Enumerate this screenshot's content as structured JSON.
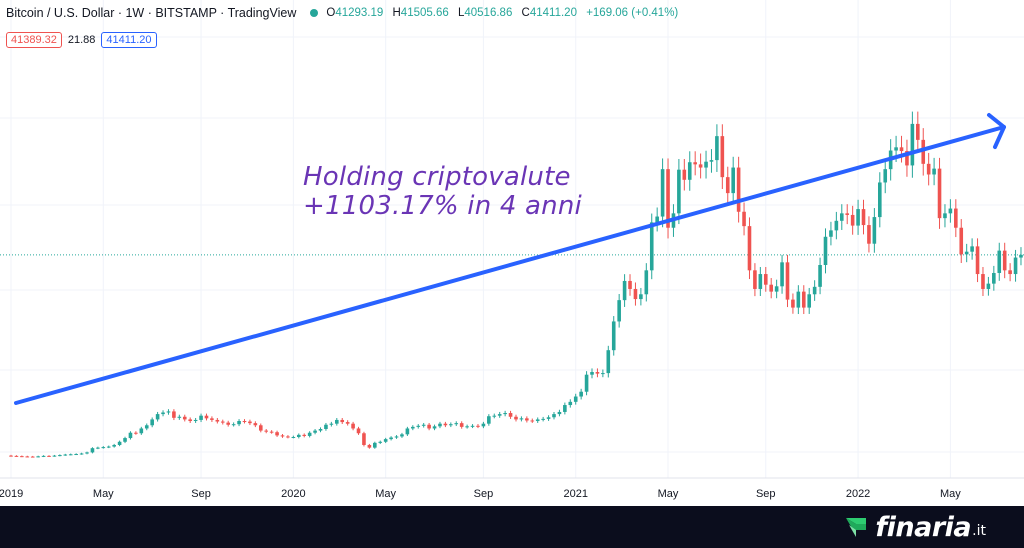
{
  "header": {
    "symbol": "Bitcoin / U.S. Dollar · 1W · BITSTAMP · TradingView",
    "open_label": "O",
    "open": "41293.19",
    "high_label": "H",
    "high": "41505.66",
    "low_label": "L",
    "low": "40516.86",
    "close_label": "C",
    "close": "41411.20",
    "change": "+169.06 (+0.41%)"
  },
  "quote": {
    "bid": "41389.32",
    "spread": "21.88",
    "ask": "41411.20"
  },
  "annotation": {
    "line1": "Holding criptovalute",
    "line2": "+1103.17% in 4 anni"
  },
  "branding": {
    "name": "finaria",
    "tld": ".it"
  },
  "colors": {
    "up": "#26a69a",
    "down": "#ef5350",
    "trend": "#2962ff",
    "annotation": "#6a35b5",
    "footer": "#0b0d1d"
  },
  "chart_data": {
    "type": "candlestick",
    "x_ticks": [
      "2019",
      "May",
      "Sep",
      "2020",
      "May",
      "Sep",
      "2021",
      "May",
      "Sep",
      "2022",
      "May"
    ],
    "x_tick_weeks": [
      0,
      17,
      35,
      52,
      69,
      87,
      104,
      121,
      139,
      156,
      173
    ],
    "ylim": [
      1000,
      78000
    ],
    "last_price": 41411.2,
    "series": [
      {
        "name": "BTC/USD 1W",
        "start": 3700,
        "closes": [
          3650,
          3600,
          3550,
          3520,
          3480,
          3560,
          3650,
          3620,
          3700,
          3800,
          3900,
          3950,
          4000,
          4100,
          4300,
          5100,
          5200,
          5300,
          5400,
          5700,
          6300,
          7000,
          8000,
          7900,
          8800,
          9400,
          10500,
          11500,
          11800,
          12000,
          10800,
          11000,
          10500,
          10200,
          10400,
          11200,
          10700,
          10400,
          10100,
          9900,
          9500,
          9600,
          10200,
          10100,
          9800,
          9400,
          8400,
          8200,
          8100,
          7500,
          7300,
          7200,
          7200,
          7600,
          7400,
          8000,
          8400,
          8700,
          9500,
          9700,
          10400,
          10000,
          9700,
          8800,
          7900,
          5700,
          5200,
          6100,
          6300,
          6800,
          7100,
          7300,
          7700,
          8800,
          9100,
          9300,
          9500,
          8800,
          9200,
          9700,
          9400,
          9600,
          9800,
          9100,
          9200,
          9300,
          9200,
          9700,
          11100,
          11200,
          11500,
          11700,
          11000,
          10500,
          10700,
          10300,
          10200,
          10500,
          10600,
          10900,
          11500,
          11900,
          13200,
          13800,
          14800,
          15700,
          18900,
          19400,
          19100,
          19200,
          23500,
          28900,
          32900,
          36500,
          35000,
          33100,
          34000,
          38500,
          47500,
          48600,
          57500,
          46500,
          49200,
          57400,
          55500,
          58800,
          58400,
          57800,
          58900,
          59200,
          63700,
          56000,
          53000,
          57800,
          49500,
          46800,
          38500,
          35000,
          37800,
          35800,
          34500,
          35500,
          40000,
          33000,
          31500,
          34500,
          31500,
          34000,
          35400,
          39500,
          44800,
          46000,
          47800,
          49200,
          48900,
          46900,
          50000,
          47000,
          43500,
          48500,
          55000,
          57500,
          61000,
          61600,
          60900,
          58200,
          66000,
          63000,
          58500,
          56500,
          57600,
          48300,
          49200,
          50100,
          46500,
          41500,
          42000,
          43000,
          37800,
          35000,
          36000,
          38000,
          42200,
          38500,
          37800,
          40900,
          41411
        ]
      }
    ]
  }
}
